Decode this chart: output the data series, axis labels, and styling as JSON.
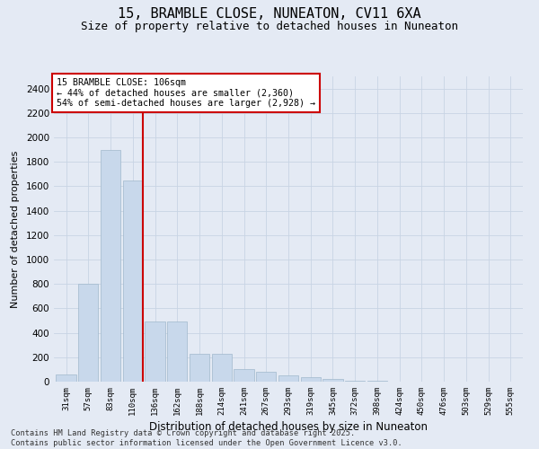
{
  "title_line1": "15, BRAMBLE CLOSE, NUNEATON, CV11 6XA",
  "title_line2": "Size of property relative to detached houses in Nuneaton",
  "xlabel": "Distribution of detached houses by size in Nuneaton",
  "ylabel": "Number of detached properties",
  "categories": [
    "31sqm",
    "57sqm",
    "83sqm",
    "110sqm",
    "136sqm",
    "162sqm",
    "188sqm",
    "214sqm",
    "241sqm",
    "267sqm",
    "293sqm",
    "319sqm",
    "345sqm",
    "372sqm",
    "398sqm",
    "424sqm",
    "450sqm",
    "476sqm",
    "503sqm",
    "529sqm",
    "555sqm"
  ],
  "values": [
    60,
    800,
    1900,
    1650,
    490,
    490,
    225,
    225,
    100,
    80,
    50,
    40,
    25,
    10,
    5,
    3,
    2,
    1,
    1,
    0,
    0
  ],
  "bar_color": "#c8d8eb",
  "bar_edge_color": "#a0b8cc",
  "vline_index": 3,
  "vline_color": "#cc0000",
  "annotation_text_line1": "15 BRAMBLE CLOSE: 106sqm",
  "annotation_text_line2": "← 44% of detached houses are smaller (2,360)",
  "annotation_text_line3": "54% of semi-detached houses are larger (2,928) →",
  "annotation_box_color": "#cc0000",
  "annotation_fill_color": "#ffffff",
  "ylim": [
    0,
    2500
  ],
  "yticks": [
    0,
    200,
    400,
    600,
    800,
    1000,
    1200,
    1400,
    1600,
    1800,
    2000,
    2200,
    2400
  ],
  "grid_color": "#c8d4e4",
  "background_color": "#e4eaf4",
  "title_fontsize": 11,
  "subtitle_fontsize": 9,
  "footer_line1": "Contains HM Land Registry data © Crown copyright and database right 2025.",
  "footer_line2": "Contains public sector information licensed under the Open Government Licence v3.0."
}
